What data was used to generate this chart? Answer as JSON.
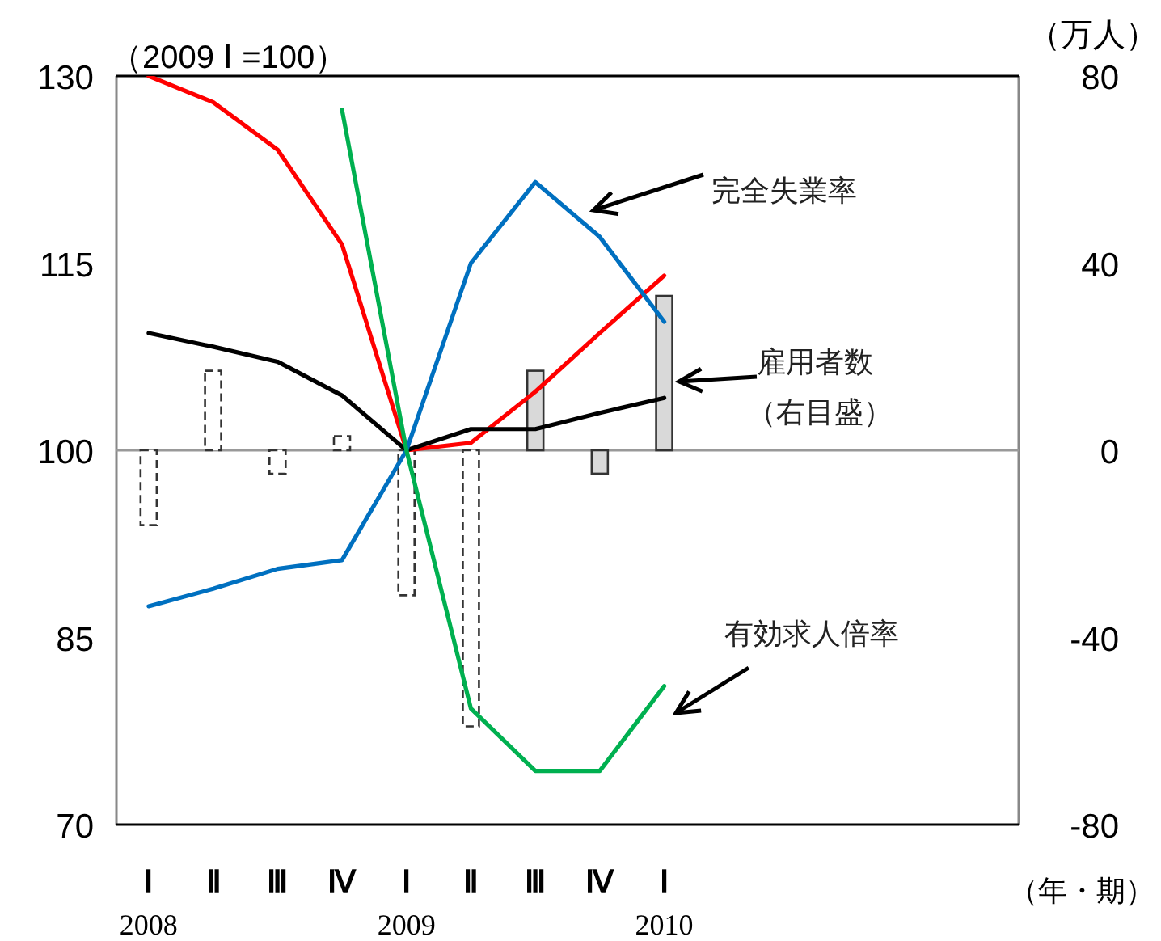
{
  "chart_data": {
    "type": "line",
    "ylabel": "（2009 Ⅰ =100）",
    "y2label": "（万人）",
    "xlabel": "（年・期）",
    "categories": [
      "Ⅰ",
      "Ⅱ",
      "Ⅲ",
      "Ⅳ",
      "Ⅰ",
      "Ⅱ",
      "Ⅲ",
      "Ⅳ",
      "Ⅰ",
      null,
      null,
      null,
      null,
      null
    ],
    "ylim": [
      70,
      130
    ],
    "yticks": [
      70,
      85,
      100,
      115,
      130
    ],
    "y2lim": [
      -80,
      80
    ],
    "y2ticks": [
      -80,
      -40,
      0,
      40,
      80
    ],
    "series": [
      {
        "type": "bar",
        "axis": "y2",
        "color": "#ffffff",
        "line_style": "dashed",
        "values": [
          -16,
          17,
          -5,
          3,
          -31,
          -59,
          null,
          null,
          null,
          null,
          null,
          null,
          null,
          null
        ]
      },
      {
        "type": "bar",
        "axis": "y2",
        "color": "#d9d9d9",
        "values": [
          null,
          null,
          null,
          null,
          null,
          null,
          17,
          -5,
          33,
          null,
          null,
          null,
          null,
          null
        ]
      },
      {
        "color": "#ff0000",
        "values": [
          130,
          127.9,
          124.1,
          116.5,
          100,
          100.6,
          104.7,
          109.4,
          114,
          null,
          null,
          null,
          null,
          null
        ]
      },
      {
        "color": "#000000",
        "values": [
          109.4,
          108.3,
          107.1,
          104.4,
          100,
          101.7,
          101.7,
          103,
          104.2,
          null,
          null,
          null,
          null,
          null
        ]
      },
      {
        "color": "#0070c0",
        "values": [
          87.5,
          88.9,
          90.5,
          91.2,
          100,
          115,
          121.5,
          117.1,
          110.3,
          null,
          null,
          null,
          null,
          null
        ]
      },
      {
        "color": "#00b050",
        "values": [
          null,
          null,
          null,
          127.3,
          100,
          79.3,
          74.3,
          74.3,
          81.1,
          null,
          null,
          null,
          null,
          null
        ]
      }
    ],
    "annotations": [
      "完全失業率",
      "雇用者数",
      "（右目盛）",
      "有効求人倍率",
      "2008",
      "2009",
      "2010"
    ],
    "ref_lines": [
      {
        "axis": "y2",
        "value": 0,
        "color": "#999999"
      }
    ],
    "marker": "none"
  }
}
